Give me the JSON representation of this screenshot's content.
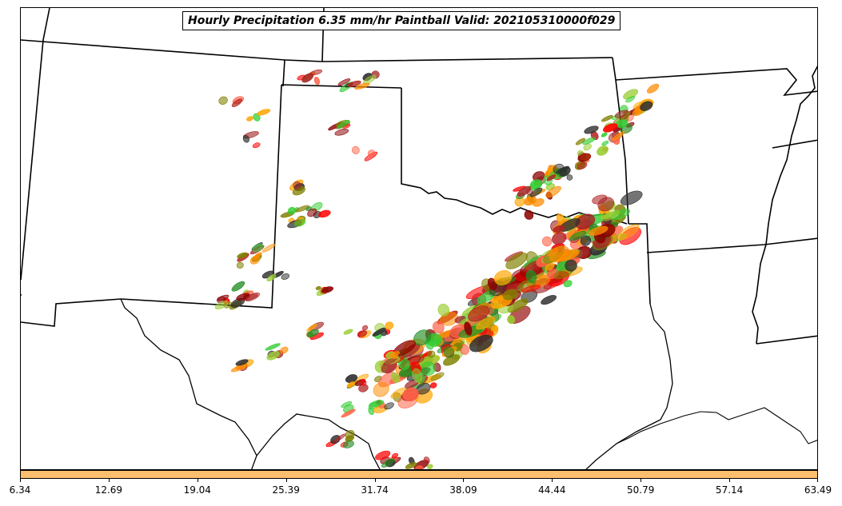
{
  "title": "Hourly Precipitation 6.35 mm/hr Paintball Valid: 202105310000f029",
  "colorbar": {
    "color": "#fdbf6f",
    "ticks": [
      "6.34",
      "12.69",
      "19.04",
      "25.39",
      "31.74",
      "38.09",
      "44.44",
      "50.79",
      "57.14",
      "63.49"
    ]
  },
  "paintball_colors": [
    "#ff0000",
    "#ff8c00",
    "#b22222",
    "#8b0000",
    "#228b22",
    "#32cd32",
    "#9acd32",
    "#808000",
    "#ff6347",
    "#2f2f2f",
    "#a52a2a",
    "#ffa500"
  ]
}
